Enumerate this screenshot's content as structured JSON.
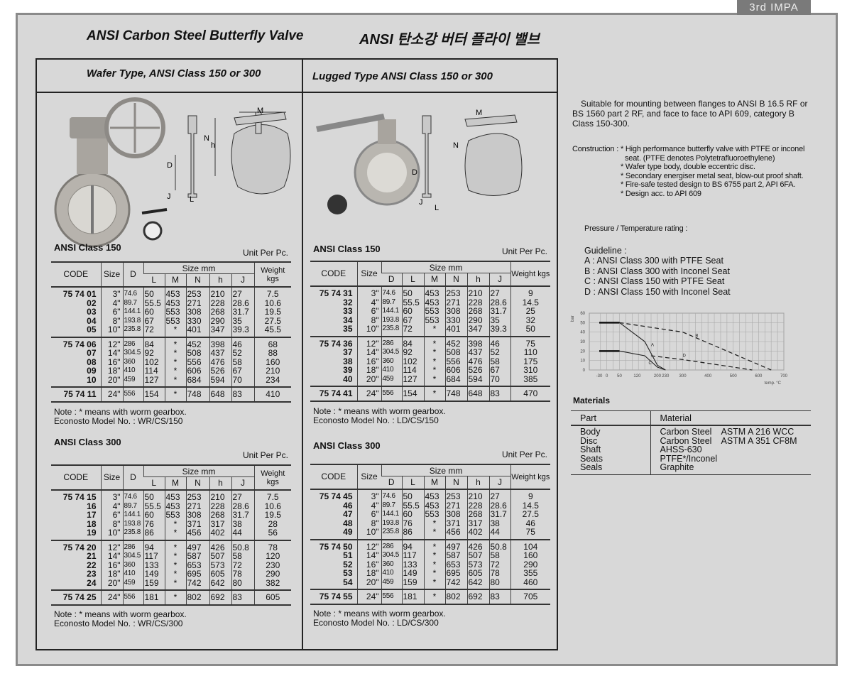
{
  "badge": "3rd IMPA",
  "title_en": "ANSI Carbon Steel Butterfly Valve",
  "title_ko": "ANSI 탄소강 버터 플라이 밸브",
  "left": {
    "heading": "Wafer Type, ANSI Class 150 or 300",
    "diagram_labels": {
      "M": "M",
      "N": "N",
      "h": "h",
      "D": "D",
      "J": "J",
      "L": "L"
    },
    "tables": [
      {
        "section": "ANSI Class 150",
        "unit": "Unit Per Pc.",
        "standalone": [
          "CODE",
          "Size",
          "D"
        ],
        "group_label": "Size mm",
        "group": [
          "L",
          "M",
          "N",
          "h",
          "J"
        ],
        "weight": "Weight kgs",
        "rows": [
          [
            [
              "75 74 01",
              "3\"",
              "74.6",
              "50",
              "453",
              "253",
              "210",
              "27",
              "7.5"
            ],
            [
              "02",
              "4\"",
              "89.7",
              "55.5",
              "453",
              "271",
              "228",
              "28.6",
              "10.6"
            ],
            [
              "03",
              "6\"",
              "144.1",
              "60",
              "553",
              "308",
              "268",
              "31.7",
              "19.5"
            ],
            [
              "04",
              "8\"",
              "193.8",
              "67",
              "553",
              "330",
              "290",
              "35",
              "27.5"
            ],
            [
              "05",
              "10\"",
              "235.8",
              "72",
              "*",
              "401",
              "347",
              "39.3",
              "45.5"
            ]
          ],
          [
            [
              "75 74 06",
              "12\"",
              "286",
              "84",
              "*",
              "452",
              "398",
              "46",
              "68"
            ],
            [
              "07",
              "14\"",
              "304.5",
              "92",
              "*",
              "508",
              "437",
              "52",
              "88"
            ],
            [
              "08",
              "16\"",
              "360",
              "102",
              "*",
              "556",
              "476",
              "58",
              "160"
            ],
            [
              "09",
              "18\"",
              "410",
              "114",
              "*",
              "606",
              "526",
              "67",
              "210"
            ],
            [
              "10",
              "20\"",
              "459",
              "127",
              "*",
              "684",
              "594",
              "70",
              "234"
            ]
          ],
          [
            [
              "75 74 11",
              "24\"",
              "556",
              "154",
              "*",
              "748",
              "648",
              "83",
              "410"
            ]
          ]
        ],
        "note": "Note : * means with worm gearbox.",
        "model": "Econosto Model No. : WR/CS/150"
      },
      {
        "section": "ANSI Class 300",
        "unit": "Unit Per Pc.",
        "standalone": [
          "CODE",
          "Size",
          "D"
        ],
        "group_label": "Size mm",
        "group": [
          "L",
          "M",
          "N",
          "h",
          "J"
        ],
        "weight": "Weight kgs",
        "rows": [
          [
            [
              "75 74 15",
              "3\"",
              "74.6",
              "50",
              "453",
              "253",
              "210",
              "27",
              "7.5"
            ],
            [
              "16",
              "4\"",
              "89.7",
              "55.5",
              "453",
              "271",
              "228",
              "28.6",
              "10.6"
            ],
            [
              "17",
              "6\"",
              "144.1",
              "60",
              "553",
              "308",
              "268",
              "31.7",
              "19.5"
            ],
            [
              "18",
              "8\"",
              "193.8",
              "76",
              "*",
              "371",
              "317",
              "38",
              "28"
            ],
            [
              "19",
              "10\"",
              "235.8",
              "86",
              "*",
              "456",
              "402",
              "44",
              "56"
            ]
          ],
          [
            [
              "75 74 20",
              "12\"",
              "286",
              "94",
              "*",
              "497",
              "426",
              "50.8",
              "78"
            ],
            [
              "21",
              "14\"",
              "304.5",
              "117",
              "*",
              "587",
              "507",
              "58",
              "120"
            ],
            [
              "22",
              "16\"",
              "360",
              "133",
              "*",
              "653",
              "573",
              "72",
              "230"
            ],
            [
              "23",
              "18\"",
              "410",
              "149",
              "*",
              "695",
              "605",
              "78",
              "290"
            ],
            [
              "24",
              "20\"",
              "459",
              "159",
              "*",
              "742",
              "642",
              "80",
              "382"
            ]
          ],
          [
            [
              "75 74 25",
              "24\"",
              "556",
              "181",
              "*",
              "802",
              "692",
              "83",
              "605"
            ]
          ]
        ],
        "note": "Note : * means with worm gearbox.",
        "model": "Econosto Model No. : WR/CS/300"
      }
    ]
  },
  "right": {
    "heading": "Lugged Type  ANSI Class 150 or 300",
    "diagram_labels": {
      "M": "M",
      "N": "N",
      "D": "D",
      "J": "J",
      "L": "L"
    },
    "tables": [
      {
        "section": "ANSI Class 150",
        "unit": "Unit Per Pc.",
        "standalone": [
          "CODE",
          "Size"
        ],
        "group_label": "Size mm",
        "group": [
          "D",
          "L",
          "M",
          "N",
          "h",
          "J"
        ],
        "weight": "Weight kgs",
        "rows": [
          [
            [
              "75 74 31",
              "3\"",
              "74.6",
              "50",
              "453",
              "253",
              "210",
              "27",
              "9"
            ],
            [
              "32",
              "4\"",
              "89.7",
              "55.5",
              "453",
              "271",
              "228",
              "28.6",
              "14.5"
            ],
            [
              "33",
              "6\"",
              "144.1",
              "60",
              "553",
              "308",
              "268",
              "31.7",
              "25"
            ],
            [
              "34",
              "8\"",
              "193.8",
              "67",
              "553",
              "330",
              "290",
              "35",
              "32"
            ],
            [
              "35",
              "10\"",
              "235.8",
              "72",
              "*",
              "401",
              "347",
              "39.3",
              "50"
            ]
          ],
          [
            [
              "75 74 36",
              "12\"",
              "286",
              "84",
              "*",
              "452",
              "398",
              "46",
              "75"
            ],
            [
              "37",
              "14\"",
              "304.5",
              "92",
              "*",
              "508",
              "437",
              "52",
              "110"
            ],
            [
              "38",
              "16\"",
              "360",
              "102",
              "*",
              "556",
              "476",
              "58",
              "175"
            ],
            [
              "39",
              "18\"",
              "410",
              "114",
              "*",
              "606",
              "526",
              "67",
              "310"
            ],
            [
              "40",
              "20\"",
              "459",
              "127",
              "*",
              "684",
              "594",
              "70",
              "385"
            ]
          ],
          [
            [
              "75 74 41",
              "24\"",
              "556",
              "154",
              "*",
              "748",
              "648",
              "83",
              "470"
            ]
          ]
        ],
        "note": "Note : * means with worm gearbox.",
        "model": "Econosto Model No. : LD/CS/150"
      },
      {
        "section": "ANSI Class 300",
        "unit": "Unit Per Pc.",
        "standalone": [
          "CODE",
          "Size"
        ],
        "group_label": "Size mm",
        "group": [
          "D",
          "L",
          "M",
          "N",
          "h",
          "J"
        ],
        "weight": "Weight kgs",
        "rows": [
          [
            [
              "75 74 45",
              "3\"",
              "74.6",
              "50",
              "453",
              "253",
              "210",
              "27",
              "9"
            ],
            [
              "46",
              "4\"",
              "89.7",
              "55.5",
              "453",
              "271",
              "228",
              "28.6",
              "14.5"
            ],
            [
              "47",
              "6\"",
              "144.1",
              "60",
              "553",
              "308",
              "268",
              "31.7",
              "27.5"
            ],
            [
              "48",
              "8\"",
              "193.8",
              "76",
              "*",
              "371",
              "317",
              "38",
              "46"
            ],
            [
              "49",
              "10\"",
              "235.8",
              "86",
              "*",
              "456",
              "402",
              "44",
              "75"
            ]
          ],
          [
            [
              "75 74 50",
              "12\"",
              "286",
              "94",
              "*",
              "497",
              "426",
              "50.8",
              "104"
            ],
            [
              "51",
              "14\"",
              "304.5",
              "117",
              "*",
              "587",
              "507",
              "58",
              "160"
            ],
            [
              "52",
              "16\"",
              "360",
              "133",
              "*",
              "653",
              "573",
              "72",
              "290"
            ],
            [
              "53",
              "18\"",
              "410",
              "149",
              "*",
              "695",
              "605",
              "78",
              "355"
            ],
            [
              "54",
              "20\"",
              "459",
              "159",
              "*",
              "742",
              "642",
              "80",
              "460"
            ]
          ],
          [
            [
              "75 74 55",
              "24\"",
              "556",
              "181",
              "*",
              "802",
              "692",
              "83",
              "705"
            ]
          ]
        ],
        "note": "Note : * means with worm gearbox.",
        "model": "Econosto Model No. : LD/CS/300"
      }
    ]
  },
  "info": {
    "description": "Suitable for mounting between flanges to ANSI B 16.5 RF or BS 1560 part 2 RF, and face to face to API 609, category B Class 150-300.",
    "construction_label": "Construction :",
    "construction": [
      "* High performance butterfly valve with PTFE or inconel seat. (PTFE denotes Polytetrafluoroethylene)",
      "* Wafer type body, double eccentric disc.",
      "* Secondary energiser metal seat, blow-out proof shaft.",
      "* Fire-safe tested design to BS 6755 part 2, API 6FA.",
      "* Design acc. to API 609"
    ],
    "rating_label": "Pressure / Temperature rating :",
    "guideline_label": "Guideline :",
    "guidelines": [
      "A : ANSI Class 300 with PTFE Seat",
      "B : ANSI Class 300 with Inconel Seat",
      "C : ANSI Class 150 with PTFE Seat",
      "D : ANSI Class 150 with Inconel Seat"
    ]
  },
  "chart_data": {
    "type": "line",
    "ylabel": "bar",
    "xlabel": "temp. °C",
    "x_ticks": [
      -30,
      0,
      50,
      120,
      200,
      232,
      300,
      400,
      500,
      600,
      700
    ],
    "x_tick_labels": [
      "-30",
      "0",
      "50",
      "120",
      "200",
      "230",
      "300",
      "400",
      "500",
      "600",
      "700"
    ],
    "y_ticks": [
      0,
      10,
      20,
      30,
      40,
      50,
      60
    ],
    "xlim": [
      -30,
      700
    ],
    "ylim": [
      0,
      60
    ],
    "grid": true,
    "series": [
      {
        "name": "A",
        "style": "solid",
        "points": [
          [
            -30,
            50
          ],
          [
            50,
            50
          ],
          [
            150,
            30
          ],
          [
            200,
            5
          ],
          [
            232,
            0
          ]
        ]
      },
      {
        "name": "B",
        "style": "dashed",
        "points": [
          [
            50,
            50
          ],
          [
            300,
            40
          ],
          [
            650,
            0
          ]
        ]
      },
      {
        "name": "C",
        "style": "solid",
        "points": [
          [
            -30,
            20
          ],
          [
            50,
            20
          ],
          [
            150,
            15
          ],
          [
            200,
            3
          ],
          [
            232,
            0
          ]
        ]
      },
      {
        "name": "D",
        "style": "dashed",
        "points": [
          [
            175,
            15
          ],
          [
            300,
            11
          ],
          [
            575,
            0
          ]
        ]
      }
    ]
  },
  "materials": {
    "title": "Materials",
    "headers": [
      "Part",
      "Material"
    ],
    "parts": [
      "Body",
      "Disc",
      "Shaft",
      "Seats",
      "Seals"
    ],
    "materials": [
      "Carbon Steel",
      "Carbon Steel",
      "AHSS-630",
      "PTFE*/Inconel",
      "Graphite"
    ],
    "standards": [
      "ASTM A 216 WCC",
      "ASTM A 351 CF8M",
      "",
      "",
      ""
    ]
  }
}
